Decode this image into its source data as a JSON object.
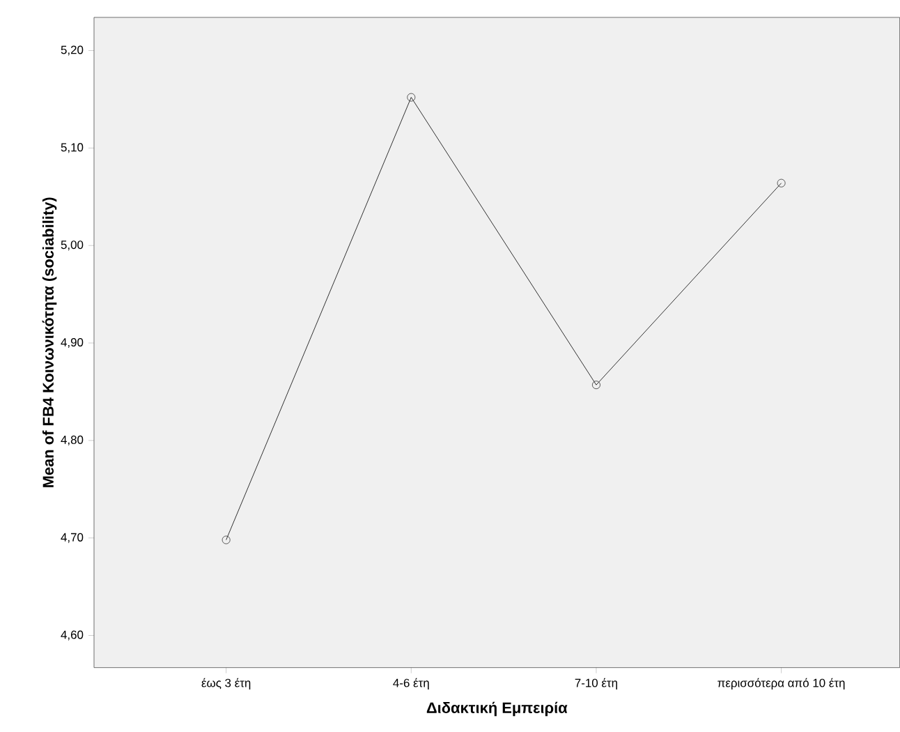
{
  "chart_data": {
    "type": "line",
    "xlabel": "Διδακτική Εμπειρία",
    "ylabel": "Mean of FB4 Κοινωνικότητα (sociability)",
    "categories": [
      "έως 3 έτη",
      "4-6 έτη",
      "7-10 έτη",
      "περισσότερα από 10 έτη"
    ],
    "values": [
      4.698,
      5.152,
      4.857,
      5.064
    ],
    "color": "#000000",
    "marker": "circle",
    "line_style": "solid",
    "ylim": [
      4.567,
      5.234
    ],
    "yticks": [
      {
        "value": 4.6,
        "label": "4,60"
      },
      {
        "value": 4.7,
        "label": "4,70"
      },
      {
        "value": 4.8,
        "label": "4,80"
      },
      {
        "value": 4.9,
        "label": "4,90"
      },
      {
        "value": 5.0,
        "label": "5,00"
      },
      {
        "value": 5.1,
        "label": "5,10"
      },
      {
        "value": 5.2,
        "label": "5,20"
      }
    ],
    "grid": false
  }
}
